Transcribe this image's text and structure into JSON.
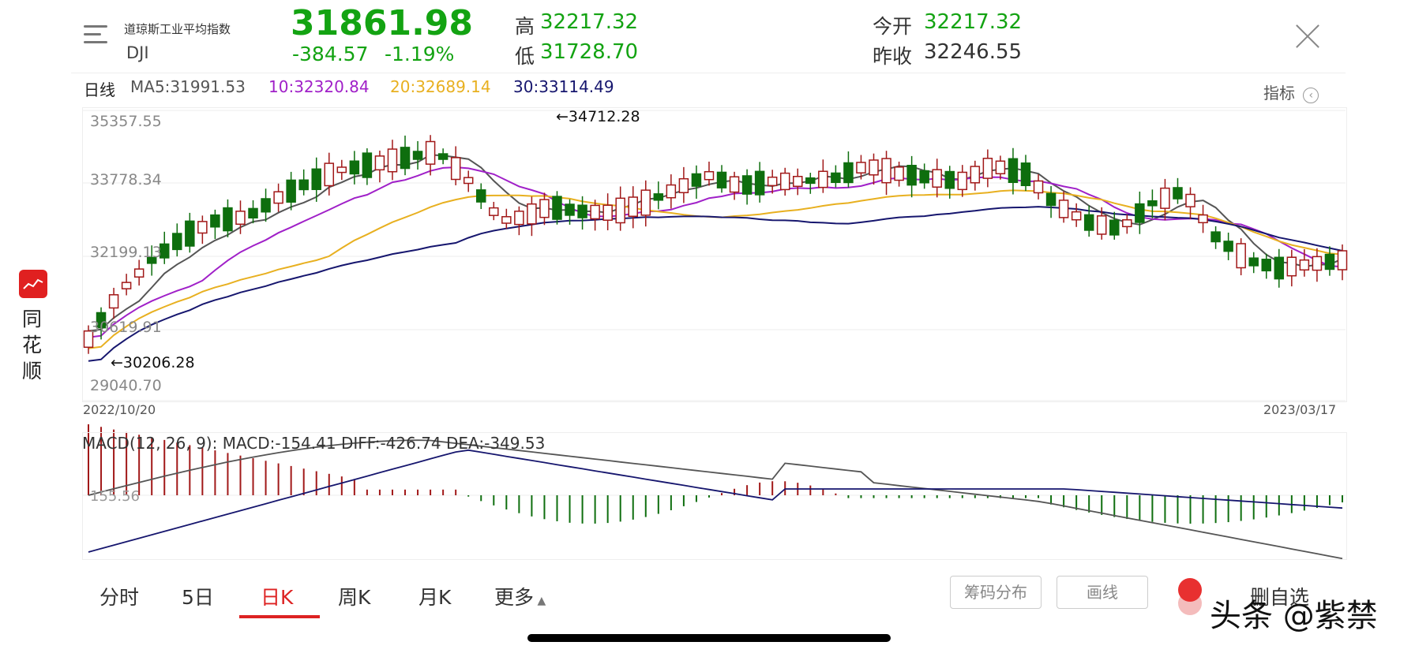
{
  "header": {
    "index_name": "道琼斯工业平均指数",
    "index_code": "DJI",
    "price": "31861.98",
    "change": "-384.57",
    "change_pct": "-1.19%",
    "high_label": "高",
    "high_value": "32217.32",
    "low_label": "低",
    "low_value": "31728.70",
    "open_label": "今开",
    "open_value": "32217.32",
    "prev_close_label": "昨收",
    "prev_close_value": "32246.55"
  },
  "ma_bar": {
    "period": "日线",
    "ma5": "MA5:31991.53",
    "ma10": "10:32320.84",
    "ma20": "20:32689.14",
    "ma30": "30:33114.49",
    "indicator_label": "指标"
  },
  "chart": {
    "y_ticks": [
      "35357.55",
      "33778.34",
      "32199.13",
      "30619.91",
      "29040.70"
    ],
    "max_annotation": "←34712.28",
    "min_annotation": "←30206.28",
    "start_date": "2022/10/20",
    "end_date": "2023/03/17"
  },
  "macd": {
    "title": "MACD(12, 26, 9): MACD:-154.41 DIFF:-426.74 DEA:-349.53",
    "tick": "155.56"
  },
  "tabs": [
    "分时",
    "5日",
    "日K",
    "周K",
    "月K",
    "更多"
  ],
  "buttons": {
    "chips": "筹码分布",
    "draw": "画线",
    "remove": "删自选"
  },
  "app": {
    "brand_chars": [
      "同",
      "花",
      "顺"
    ]
  },
  "watermark": "头条 @紫禁",
  "colors": {
    "up": "#a11818",
    "down": "#0e6e0e",
    "ma5": "#555555",
    "ma10": "#a020c8",
    "ma20": "#e8b020",
    "ma30": "#16166e"
  }
}
